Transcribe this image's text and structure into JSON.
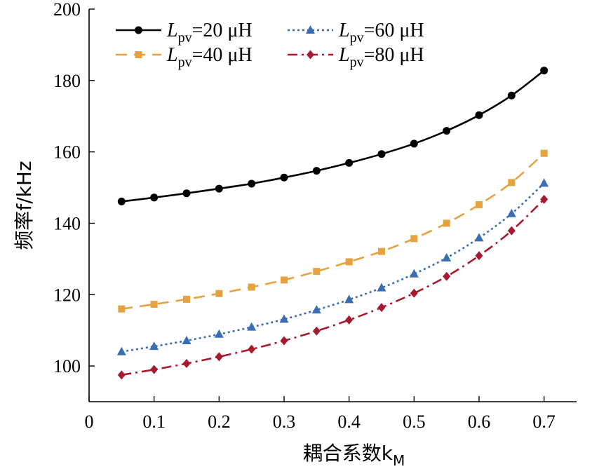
{
  "chart_data": {
    "type": "line",
    "xlabel": "耦合系数k",
    "xlabel_sub": "M",
    "ylabel": "频率f/kHz",
    "xlim": [
      0,
      0.75
    ],
    "ylim": [
      90,
      200
    ],
    "xticks": [
      0,
      0.1,
      0.2,
      0.3,
      0.4,
      0.5,
      0.6,
      0.7
    ],
    "xtick_labels": [
      "0",
      "0.1",
      "0.2",
      "0.3",
      "0.4",
      "0.5",
      "0.6",
      "0.7"
    ],
    "yticks": [
      100,
      120,
      140,
      160,
      180,
      200
    ],
    "ytick_labels": [
      "100",
      "120",
      "140",
      "160",
      "180",
      "200"
    ],
    "grid": false,
    "legend_position": "top-left",
    "x": [
      0.05,
      0.1,
      0.15,
      0.2,
      0.25,
      0.3,
      0.35,
      0.4,
      0.45,
      0.5,
      0.55,
      0.6,
      0.65,
      0.7
    ],
    "series": [
      {
        "name": "Lpv=20 μH",
        "legend_main": "L",
        "legend_sub": "pv",
        "legend_rest": "=20 μH",
        "color": "#000000",
        "marker": "circle",
        "dash": "solid",
        "values": [
          146.1,
          147.2,
          148.4,
          149.7,
          151.1,
          152.8,
          154.7,
          156.9,
          159.4,
          162.3,
          165.9,
          170.3,
          175.8,
          182.8
        ]
      },
      {
        "name": "Lpv=40 μH",
        "legend_main": "L",
        "legend_sub": "pv",
        "legend_rest": "=40 μH",
        "color": "#E6A23C",
        "marker": "square",
        "dash": "dashed",
        "values": [
          116.0,
          117.3,
          118.7,
          120.3,
          122.1,
          124.1,
          126.5,
          129.2,
          132.1,
          135.7,
          140.0,
          145.2,
          151.4,
          159.6
        ]
      },
      {
        "name": "Lpv=60 μH",
        "legend_main": "L",
        "legend_sub": "pv",
        "legend_rest": "=60 μH",
        "color": "#3B6DB3",
        "marker": "triangle",
        "dash": "dotted",
        "values": [
          104.0,
          105.5,
          107.1,
          108.9,
          110.9,
          113.1,
          115.7,
          118.6,
          121.9,
          125.8,
          130.3,
          135.9,
          142.7,
          151.2
        ]
      },
      {
        "name": "Lpv=80 μH",
        "legend_main": "L",
        "legend_sub": "pv",
        "legend_rest": "=80 μH",
        "color": "#A6192E",
        "marker": "diamond",
        "dash": "dashdot",
        "values": [
          97.5,
          99.0,
          100.7,
          102.6,
          104.7,
          107.1,
          109.8,
          112.9,
          116.4,
          120.4,
          125.1,
          130.9,
          137.9,
          146.7
        ]
      }
    ]
  }
}
